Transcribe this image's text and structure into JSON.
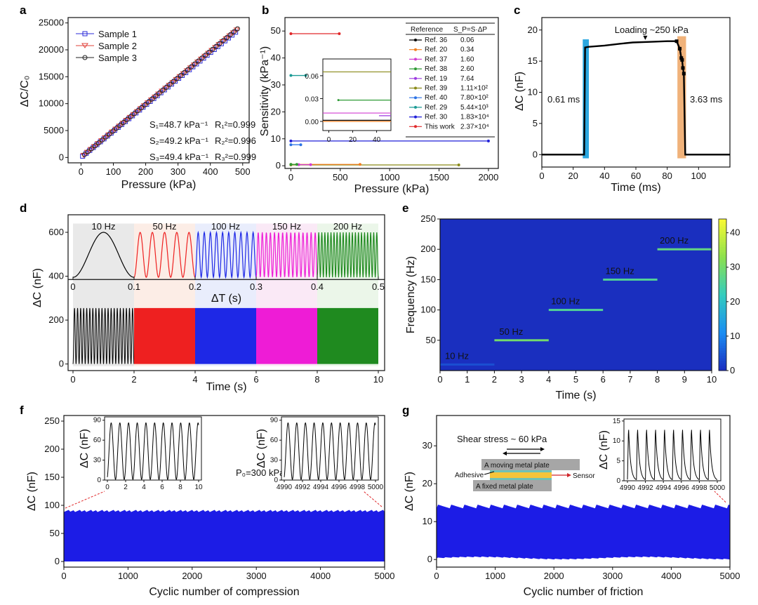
{
  "panels": {
    "a": {
      "letter": "a",
      "xlabel": "Pressure (kPa)",
      "ylabel": "ΔC/C₀",
      "xlim": [
        -40,
        520
      ],
      "ylim": [
        -1000,
        26000
      ],
      "xticks": [
        0,
        100,
        200,
        300,
        400,
        500
      ],
      "yticks": [
        0,
        5000,
        10000,
        15000,
        20000,
        25000
      ],
      "legend": [
        {
          "name": "Sample 1",
          "color": "#2b2bd9",
          "marker": "square"
        },
        {
          "name": "Sample 2",
          "color": "#e0413a",
          "marker": "triangle-down"
        },
        {
          "name": "Sample 3",
          "color": "#222222",
          "marker": "circle"
        }
      ],
      "fits": [
        {
          "s": "S₁=48.7 kPa⁻¹",
          "r": "R₁²=0.999"
        },
        {
          "s": "S₂=49.2 kPa⁻¹",
          "r": "R₂²=0.996"
        },
        {
          "s": "S₃=49.4 kPa⁻¹",
          "r": "R₃²=0.999"
        }
      ]
    },
    "b": {
      "letter": "b",
      "xlabel": "Pressure (kPa)",
      "ylabel": "Sensitivity (kPa⁻¹)",
      "xlim": [
        -60,
        2100
      ],
      "ylim": [
        -1,
        55
      ],
      "xticks": [
        0,
        500,
        1000,
        1500,
        2000
      ],
      "yticks": [
        0,
        10,
        20,
        30,
        40,
        50
      ],
      "table_header": [
        "Reference",
        "S_P=S·ΔP"
      ],
      "refs": [
        {
          "name": "Ref. 36",
          "value": "0.06",
          "color": "#000000"
        },
        {
          "name": "Ref. 20",
          "value": "0.34",
          "color": "#f07f21"
        },
        {
          "name": "Ref. 37",
          "value": "1.60",
          "color": "#d23cd2"
        },
        {
          "name": "Ref. 38",
          "value": "2.60",
          "color": "#2f9a36"
        },
        {
          "name": "Ref. 19",
          "value": "7.64",
          "color": "#9c39e0"
        },
        {
          "name": "Ref. 39",
          "value": "1.11×10²",
          "color": "#8a8a18"
        },
        {
          "name": "Ref. 40",
          "value": "7.80×10²",
          "color": "#2a72e6"
        },
        {
          "name": "Ref. 29",
          "value": "5.44×10³",
          "color": "#1c9b95"
        },
        {
          "name": "Ref. 30",
          "value": "1.83×10⁴",
          "color": "#1f1fd9"
        },
        {
          "name": "This work",
          "value": "2.37×10⁴",
          "color": "#e0282a"
        }
      ],
      "segments": [
        {
          "ref": "This work",
          "x": [
            0,
            490
          ],
          "y": 49
        },
        {
          "ref": "Ref. 29",
          "x": [
            0,
            150
          ],
          "y": 33.5
        },
        {
          "ref": "Ref. 30",
          "x": [
            0,
            2000
          ],
          "y": 9.2
        },
        {
          "ref": "Ref. 40",
          "x": [
            0,
            100
          ],
          "y": 7.8
        },
        {
          "ref": "Ref. 39",
          "x": [
            0,
            1700
          ],
          "y": 0.3
        },
        {
          "ref": "Ref. 20",
          "x": [
            0,
            700
          ],
          "y": 0.5
        },
        {
          "ref": "Ref. 37",
          "x": [
            80,
            200
          ],
          "y": 0.4
        },
        {
          "ref": "Ref. 38",
          "x": [
            0,
            60
          ],
          "y": 0.5
        }
      ],
      "inset": {
        "xlim": [
          -5,
          52
        ],
        "ylim": [
          -0.012,
          0.082
        ],
        "xticks": [
          0,
          20,
          40
        ],
        "yticks": [
          0.0,
          0.03,
          0.06
        ],
        "ytick_labels": [
          "0.00",
          "0.03",
          "0.06"
        ],
        "segments": [
          {
            "ref": "Ref. 39",
            "x": [
              -5,
              52
            ],
            "y": 0.065
          },
          {
            "ref": "Ref. 38",
            "x": [
              8,
              52
            ],
            "y": 0.028
          },
          {
            "ref": "Ref. 19",
            "x": [
              42,
              52
            ],
            "y": 0.0075
          },
          {
            "ref": "Ref. 37",
            "x": [
              -5,
              52
            ],
            "y": 0.011
          },
          {
            "ref": "Ref. 20",
            "x": [
              -5,
              52
            ],
            "y": 0.0
          },
          {
            "ref": "Ref. 36",
            "x": [
              -5,
              52
            ],
            "y": 0.0015
          }
        ]
      }
    },
    "c": {
      "letter": "c",
      "xlabel": "Time (ms)",
      "ylabel": "ΔC (nF)",
      "xlim": [
        0,
        120
      ],
      "ylim": [
        -2,
        22
      ],
      "xticks": [
        0,
        20,
        40,
        60,
        80,
        100
      ],
      "yticks": [
        0,
        5,
        10,
        15,
        20
      ],
      "annotation": "Loading ~250 kPa",
      "response_label": "0.61 ms",
      "recovery_label": "3.63 ms",
      "label_color": "#d0262c",
      "band_colors": [
        "#2aa7e0",
        "#f0b27a"
      ],
      "x": [
        0,
        27,
        27.6,
        30,
        40,
        50,
        58,
        70,
        80,
        86,
        88,
        89,
        89.5,
        90,
        90.6,
        91.5,
        120
      ],
      "y": [
        0,
        0,
        17.2,
        17.3,
        17.5,
        17.8,
        18.0,
        18.1,
        18.2,
        18.2,
        17.0,
        15.5,
        15.2,
        13.9,
        13.0,
        0,
        0
      ],
      "marker_points": [
        {
          "x": 88,
          "y": 17.0
        },
        {
          "x": 89,
          "y": 15.5
        },
        {
          "x": 89.5,
          "y": 15.2
        },
        {
          "x": 90,
          "y": 13.9
        },
        {
          "x": 90.6,
          "y": 13.0
        },
        {
          "x": 86,
          "y": 18.2
        }
      ]
    },
    "d": {
      "letter": "d",
      "ylabel": "ΔC (nF)",
      "xlabel": "Time (s)",
      "top_xlabel": "ΔT (s)",
      "ylim": [
        -30,
        680
      ],
      "yticks": [
        0,
        200,
        400,
        600
      ],
      "xticks": [
        0,
        2,
        4,
        6,
        8,
        10
      ],
      "top_xticks": [
        "0",
        "0.1",
        "0.2",
        "0.3",
        "0.4",
        "0.5"
      ],
      "freq_labels": [
        "10 Hz",
        "50 Hz",
        "100 Hz",
        "150 Hz",
        "200 Hz"
      ],
      "colors": [
        "#000000",
        "#ee2020",
        "#1e28e6",
        "#ee1cd6",
        "#1f8a1f"
      ],
      "bg_colors": [
        "#e0e0e0",
        "#fbe5dc",
        "#dfe5fb",
        "#f8dff2",
        "#e2f2df"
      ],
      "amplitude_low": 0,
      "amplitude_high": 255
    },
    "e": {
      "letter": "e",
      "xlabel": "Time (s)",
      "ylabel": "Frequency (Hz)",
      "xlim": [
        0,
        10
      ],
      "ylim": [
        0,
        250
      ],
      "xticks": [
        0,
        1,
        2,
        3,
        4,
        5,
        6,
        7,
        8,
        9,
        10
      ],
      "yticks": [
        50,
        100,
        150,
        200,
        250
      ],
      "colorbar_ticks": [
        0,
        10,
        20,
        30,
        40
      ],
      "colorbar_max": 44,
      "background": "#1a2fbf",
      "bands": [
        {
          "label": "10 Hz",
          "t": [
            0,
            2
          ],
          "f": 10,
          "intensity": 4
        },
        {
          "label": "50 Hz",
          "t": [
            2,
            4
          ],
          "f": 50,
          "intensity": 30
        },
        {
          "label": "100 Hz",
          "t": [
            4,
            6
          ],
          "f": 100,
          "intensity": 26
        },
        {
          "label": "150 Hz",
          "t": [
            6,
            8
          ],
          "f": 150,
          "intensity": 26
        },
        {
          "label": "200 Hz",
          "t": [
            8,
            10
          ],
          "f": 200,
          "intensity": 28
        }
      ]
    },
    "f": {
      "letter": "f",
      "xlabel": "Cyclic number of compression",
      "ylabel": "ΔC (nF)",
      "xlim": [
        0,
        5000
      ],
      "ylim": [
        -10,
        260
      ],
      "xticks": [
        0,
        1000,
        2000,
        3000,
        4000,
        5000
      ],
      "yticks": [
        0,
        50,
        100,
        150,
        200,
        250
      ],
      "fill_top": 90,
      "pressure_label": "P₀=300 kPa",
      "inset1": {
        "ylabel": "ΔC (nF)",
        "xticks": [
          "0",
          "2",
          "4",
          "6",
          "8",
          "10"
        ],
        "yticks": [
          "0",
          "30",
          "60",
          "90"
        ],
        "cycles": 10.5,
        "peak": 85
      },
      "inset2": {
        "ylabel": "ΔC (nF)",
        "xticks": [
          "4990",
          "4992",
          "4994",
          "4996",
          "4998",
          "5000"
        ],
        "yticks": [
          "0",
          "30",
          "60",
          "90"
        ],
        "cycles": 10.5,
        "peak": 85
      }
    },
    "g": {
      "letter": "g",
      "xlabel": "Cyclic number of friction",
      "ylabel": "ΔC (nF)",
      "xlim": [
        0,
        5000
      ],
      "ylim": [
        -2,
        38
      ],
      "xticks": [
        0,
        1000,
        2000,
        3000,
        4000,
        5000
      ],
      "yticks": [
        0,
        10,
        20,
        30
      ],
      "fill_top": 14,
      "shear_label": "Shear stress ~ 60 kPa",
      "moving_plate": "A moving metal plate",
      "fixed_plate": "A fixed metal plate",
      "adhesive": "Adhesive",
      "sensor": "Sensor",
      "inset": {
        "ylabel": "ΔC (nF)",
        "xticks": [
          "4990",
          "4992",
          "4994",
          "4996",
          "4998",
          "5000"
        ],
        "yticks": [
          "0",
          "5",
          "10",
          "15"
        ],
        "cycles": 10,
        "peak": 14
      }
    }
  }
}
